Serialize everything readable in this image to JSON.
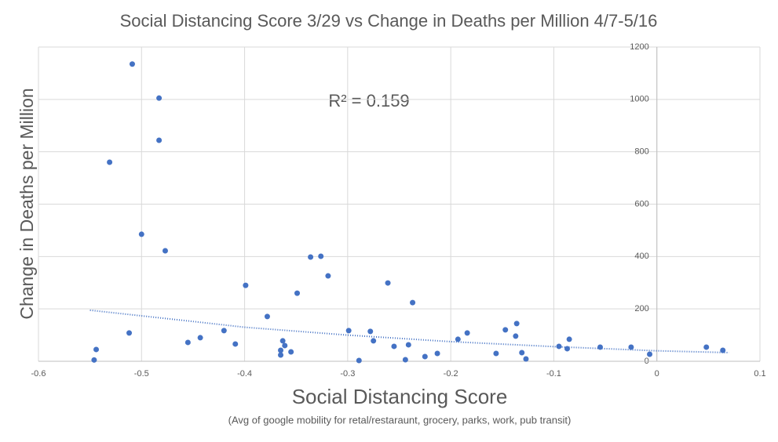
{
  "chart_data": {
    "type": "scatter",
    "title": "Social Distancing Score 3/29 vs Change in Deaths per Million 4/7-5/16",
    "x_label": "Social Distancing Score",
    "x_sublabel": "(Avg of google mobility for retal/restaraunt, grocery, parks, work, pub transit)",
    "y_label": "Change in Deaths per Million",
    "annotation": "R² = 0.159",
    "color": "#4472c4",
    "grid": true,
    "xlim": [
      -0.6,
      0.1
    ],
    "xticks": [
      -0.6,
      -0.5,
      -0.4,
      -0.3,
      -0.2,
      -0.1,
      0,
      0.1
    ],
    "ylim": [
      0,
      1200
    ],
    "yticks": [
      0,
      200,
      400,
      600,
      800,
      1000,
      1200
    ],
    "x": [
      -0.509,
      -0.483,
      -0.483,
      -0.531,
      -0.5,
      -0.477,
      -0.546,
      -0.544,
      -0.512,
      -0.455,
      -0.443,
      -0.42,
      -0.409,
      -0.399,
      -0.378,
      -0.365,
      -0.365,
      -0.363,
      -0.361,
      -0.355,
      -0.349,
      -0.336,
      -0.326,
      -0.319,
      -0.299,
      -0.289,
      -0.278,
      -0.275,
      -0.261,
      -0.255,
      -0.244,
      -0.241,
      -0.237,
      -0.225,
      -0.213,
      -0.193,
      -0.184,
      -0.156,
      -0.147,
      -0.136,
      -0.137,
      -0.131,
      -0.127,
      -0.095,
      -0.087,
      -0.085,
      -0.055,
      -0.025,
      -0.007,
      0.048,
      0.064
    ],
    "values": [
      1135,
      1005,
      844,
      760,
      485,
      422,
      5,
      45,
      108,
      72,
      90,
      117,
      66,
      290,
      171,
      24,
      42,
      78,
      60,
      36,
      260,
      398,
      401,
      326,
      117,
      3,
      114,
      78,
      299,
      57,
      6,
      63,
      224,
      18,
      30,
      84,
      108,
      30,
      120,
      144,
      96,
      33,
      9,
      57,
      48,
      84,
      54,
      54,
      27,
      54,
      42
    ],
    "trendline": {
      "x": [
        -0.55,
        -0.45,
        -0.4,
        -0.3,
        -0.2,
        -0.1,
        0,
        0.07
      ],
      "values": [
        195,
        152,
        130,
        100,
        75,
        56,
        40,
        33
      ]
    }
  }
}
